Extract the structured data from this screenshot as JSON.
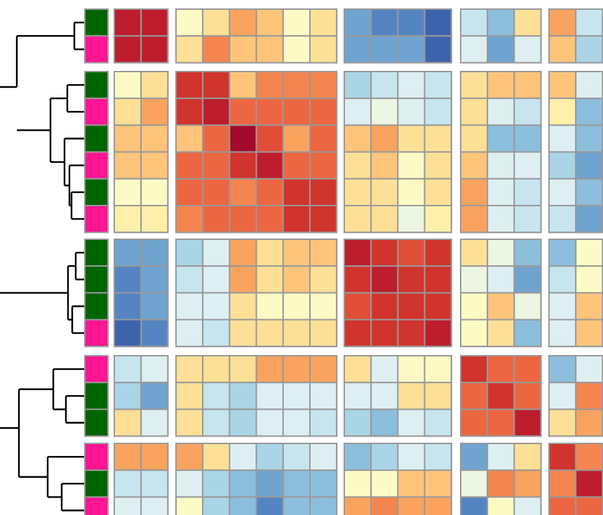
{
  "chart_data": {
    "type": "heatmap",
    "title": "",
    "colors": {
      "group_a": "#006400",
      "group_b": "#ff1493",
      "cell_border": "#999999",
      "dendrogram": "#000000"
    },
    "palette": [
      "#3e63ad",
      "#5485c2",
      "#6fa4d0",
      "#8cbedd",
      "#a9d5e7",
      "#c6e5ef",
      "#deeff2",
      "#edf6e2",
      "#fdfbc5",
      "#fef0a8",
      "#fde096",
      "#fdc47a",
      "#f9a35f",
      "#f48550",
      "#ec6642",
      "#e04e38",
      "#d0342c",
      "#bd1d2d",
      "#a3092a"
    ],
    "row_blocks": [
      {
        "rows": [
          {
            "group": "green",
            "values": [
              0.97,
              0.97,
              0.46,
              0.58,
              0.65,
              0.59,
              0.46,
              0.53,
              0.09,
              0.06,
              0.06,
              0.02,
              0.28,
              0.17,
              0.53,
              0.65,
              0.25
            ]
          },
          {
            "group": "pink",
            "values": [
              0.97,
              0.97,
              0.53,
              0.73,
              0.63,
              0.59,
              0.46,
              0.53,
              0.09,
              0.09,
              0.09,
              0.02,
              0.31,
              0.09,
              0.36,
              0.62,
              0.22
            ]
          }
        ]
      },
      {
        "rows": [
          {
            "group": "green",
            "values": [
              0.45,
              0.53,
              0.91,
              0.88,
              0.59,
              0.72,
              0.72,
              0.72,
              0.22,
              0.28,
              0.31,
              0.28,
              0.53,
              0.59,
              0.59,
              0.63,
              0.36
            ]
          },
          {
            "group": "pink",
            "values": [
              0.58,
              0.68,
              0.91,
              0.97,
              0.79,
              0.8,
              0.8,
              0.8,
              0.31,
              0.4,
              0.31,
              0.28,
              0.53,
              0.31,
              0.25,
              0.5,
              0.17
            ]
          },
          {
            "group": "green",
            "values": [
              0.6,
              0.6,
              0.59,
              0.76,
              0.99,
              0.86,
              0.68,
              0.8,
              0.63,
              0.68,
              0.53,
              0.53,
              0.53,
              0.17,
              0.17,
              0.31,
              0.17
            ]
          },
          {
            "group": "pink",
            "values": [
              0.59,
              0.59,
              0.76,
              0.8,
              0.88,
              0.97,
              0.8,
              0.8,
              0.58,
              0.59,
              0.46,
              0.53,
              0.62,
              0.31,
              0.31,
              0.22,
              0.12
            ]
          },
          {
            "group": "green",
            "values": [
              0.45,
              0.45,
              0.8,
              0.8,
              0.7,
              0.8,
              0.91,
              0.88,
              0.58,
              0.53,
              0.46,
              0.53,
              0.65,
              0.31,
              0.25,
              0.31,
              0.17
            ]
          },
          {
            "group": "pink",
            "values": [
              0.5,
              0.5,
              0.73,
              0.8,
              0.76,
              0.8,
              0.88,
              0.91,
              0.58,
              0.53,
              0.4,
              0.5,
              0.65,
              0.31,
              0.25,
              0.25,
              0.12
            ]
          }
        ]
      },
      {
        "rows": [
          {
            "group": "green",
            "values": [
              0.12,
              0.12,
              0.22,
              0.31,
              0.65,
              0.58,
              0.59,
              0.59,
              0.97,
              0.91,
              0.84,
              0.88,
              0.53,
              0.4,
              0.17,
              0.17,
              0.46
            ]
          },
          {
            "group": "green",
            "values": [
              0.06,
              0.12,
              0.28,
              0.36,
              0.65,
              0.58,
              0.59,
              0.58,
              0.91,
              0.97,
              0.88,
              0.91,
              0.4,
              0.31,
              0.12,
              0.25,
              0.46
            ]
          },
          {
            "group": "green",
            "values": [
              0.06,
              0.12,
              0.31,
              0.31,
              0.53,
              0.46,
              0.46,
              0.46,
              0.84,
              0.88,
              0.91,
              0.88,
              0.46,
              0.59,
              0.4,
              0.31,
              0.59
            ]
          },
          {
            "group": "pink",
            "values": [
              0.02,
              0.06,
              0.31,
              0.28,
              0.53,
              0.53,
              0.53,
              0.53,
              0.91,
              0.91,
              0.88,
              0.97,
              0.46,
              0.53,
              0.17,
              0.31,
              0.59
            ]
          }
        ]
      },
      {
        "rows": [
          {
            "group": "pink",
            "values": [
              0.28,
              0.31,
              0.53,
              0.53,
              0.53,
              0.65,
              0.65,
              0.65,
              0.53,
              0.36,
              0.46,
              0.46,
              0.88,
              0.8,
              0.8,
              0.17,
              0.36
            ]
          },
          {
            "group": "green",
            "values": [
              0.22,
              0.12,
              0.58,
              0.28,
              0.22,
              0.31,
              0.31,
              0.36,
              0.36,
              0.36,
              0.53,
              0.53,
              0.8,
              0.91,
              0.8,
              0.31,
              0.73
            ]
          },
          {
            "group": "green",
            "values": [
              0.53,
              0.36,
              0.58,
              0.28,
              0.22,
              0.36,
              0.31,
              0.28,
              0.22,
              0.17,
              0.31,
              0.25,
              0.8,
              0.8,
              0.93,
              0.53,
              0.65
            ]
          }
        ]
      },
      {
        "rows": [
          {
            "group": "pink",
            "values": [
              0.65,
              0.65,
              0.65,
              0.53,
              0.31,
              0.22,
              0.28,
              0.31,
              0.17,
              0.22,
              0.31,
              0.25,
              0.12,
              0.36,
              0.53,
              0.91,
              0.73
            ]
          },
          {
            "group": "green",
            "values": [
              0.28,
              0.28,
              0.31,
              0.22,
              0.17,
              0.12,
              0.17,
              0.17,
              0.46,
              0.46,
              0.59,
              0.59,
              0.4,
              0.73,
              0.65,
              0.73,
              0.97
            ]
          },
          {
            "group": "pink",
            "values": [
              0.31,
              0.31,
              0.45,
              0.22,
              0.17,
              0.06,
              0.17,
              0.17,
              0.65,
              0.7,
              0.65,
              0.65,
              0.06,
              0.46,
              0.31,
              0.8,
              0.8
            ]
          }
        ]
      }
    ],
    "column_blocks": [
      2,
      6,
      4,
      3,
      2
    ]
  }
}
